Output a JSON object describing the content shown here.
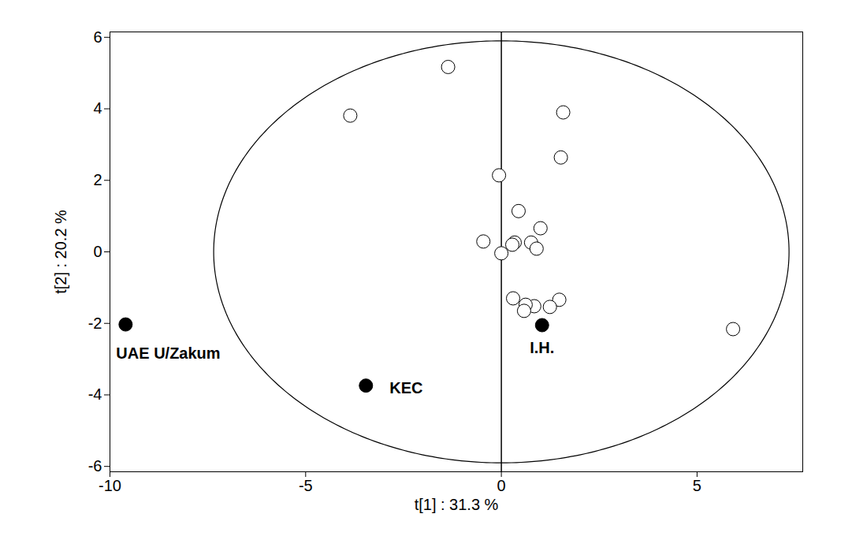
{
  "chart_data": {
    "type": "scatter",
    "x_label": "t[1] : 31.3 %",
    "y_label": "t[2] : 20.2 %",
    "xlim": [
      -10,
      7.7
    ],
    "ylim": [
      -6.15,
      6.15
    ],
    "xticks": [
      -10,
      -5,
      0,
      5
    ],
    "yticks": [
      -6,
      -4,
      -2,
      0,
      2,
      4,
      6
    ],
    "color": "#000000",
    "ellipse": {
      "rx": 7.35,
      "ry": 5.9
    },
    "series": [
      {
        "marker": "open",
        "x": [
          -1.36,
          -3.86,
          1.58,
          1.52,
          -0.06,
          0.44,
          1.0,
          -0.46,
          0.34,
          0.28,
          0.76,
          0.9,
          0.0,
          0.3,
          0.84,
          0.62,
          1.48,
          1.24,
          0.58,
          5.92
        ],
        "y": [
          5.17,
          3.81,
          3.9,
          2.64,
          2.14,
          1.14,
          0.66,
          0.29,
          0.26,
          0.2,
          0.26,
          0.09,
          -0.04,
          -1.3,
          -1.52,
          -1.48,
          -1.34,
          -1.54,
          -1.65,
          -2.16
        ]
      },
      {
        "marker": "filled",
        "x": [
          -9.6,
          -3.46,
          1.04
        ],
        "y": [
          -2.03,
          -3.74,
          -2.05
        ],
        "labels": [
          "UAE U/Zakum",
          "KEC",
          "I.H."
        ]
      }
    ]
  }
}
